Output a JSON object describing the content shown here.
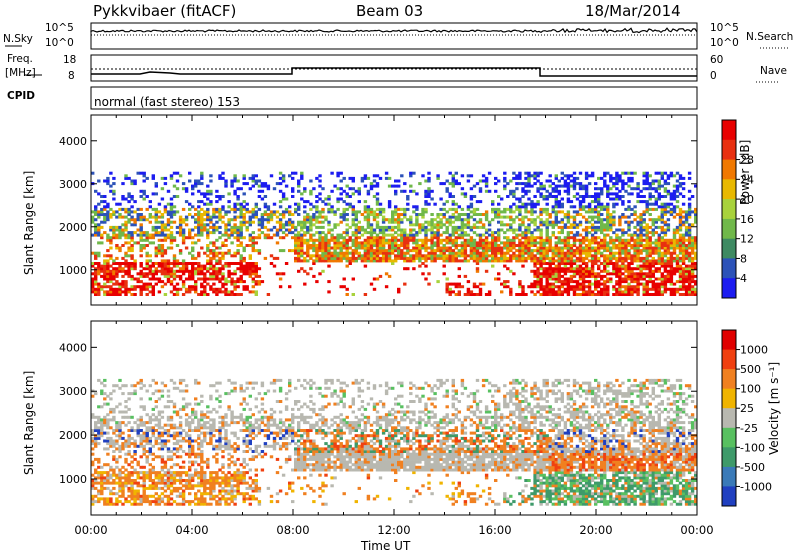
{
  "header": {
    "station": "Pykkvibaer (fitACF)",
    "beam": "Beam 03",
    "date": "18/Mar/2014"
  },
  "top_panels": {
    "nsky_label": "N.Sky",
    "nsky_ticks": [
      "10^5",
      "10^0"
    ],
    "nsearch_label": "N.Search",
    "nsearch_ticks": [
      "10^5",
      "10^0"
    ],
    "freq_label_1": "Freq.",
    "freq_label_2": "[MHz]",
    "freq_ticks": [
      "18",
      "8"
    ],
    "nave_label": "Nave",
    "nave_ticks": [
      "60",
      "0"
    ],
    "cpid_label": "CPID",
    "cpid_text": "normal (fast stereo) 153"
  },
  "chart_data": [
    {
      "type": "heatmap",
      "title": "",
      "xlabel": "Time UT",
      "ylabel": "Slant Range [km]",
      "xlim": [
        0,
        24
      ],
      "ylim": [
        180,
        4600
      ],
      "x_ticks": [
        "00:00",
        "04:00",
        "08:00",
        "12:00",
        "16:00",
        "20:00",
        "00:00"
      ],
      "y_ticks": [
        "1000",
        "2000",
        "3000",
        "4000"
      ],
      "y_tick_values": [
        1000,
        2000,
        3000,
        4000
      ],
      "colorbar": {
        "label": "Power [dB]",
        "ticks": [
          "4",
          "8",
          "12",
          "16",
          "20",
          "24",
          "28"
        ],
        "colors": [
          "#1c1cf0",
          "#2c52b8",
          "#3e8a62",
          "#70b84a",
          "#a8d23c",
          "#e8b800",
          "#f07800",
          "#e83010",
          "#e80000"
        ]
      },
      "features": [
        {
          "range_km": [
            700,
            1300
          ],
          "time_h": [
            0,
            6.5
          ],
          "dominant": "red"
        },
        {
          "range_km": [
            1200,
            1600
          ],
          "time_h": [
            8,
            18
          ],
          "dominant": "orange-red"
        },
        {
          "range_km": [
            1700,
            2400
          ],
          "time_h": [
            0,
            24
          ],
          "dominant": "green-orange"
        },
        {
          "range_km": [
            2400,
            3200
          ],
          "time_h": [
            0,
            24
          ],
          "dominant": "blue"
        },
        {
          "range_km": [
            700,
            1100
          ],
          "time_h": [
            18,
            24
          ],
          "dominant": "red"
        }
      ]
    },
    {
      "type": "heatmap",
      "title": "",
      "xlabel": "Time UT",
      "ylabel": "Slant Range [km]",
      "xlim": [
        0,
        24
      ],
      "ylim": [
        180,
        4600
      ],
      "x_ticks": [
        "00:00",
        "04:00",
        "08:00",
        "12:00",
        "16:00",
        "20:00",
        "00:00"
      ],
      "y_ticks": [
        "1000",
        "2000",
        "3000",
        "4000"
      ],
      "y_tick_values": [
        1000,
        2000,
        3000,
        4000
      ],
      "colorbar": {
        "label": "Velocity [m s⁻¹]",
        "ticks": [
          "1000",
          "500",
          "100",
          "25",
          "-25",
          "-100",
          "-500",
          "-1000"
        ],
        "colors": [
          "#2040c0",
          "#3a7ab8",
          "#3e9a6a",
          "#58c060",
          "#b8b8b0",
          "#f0b400",
          "#f08020",
          "#f04010",
          "#e00000"
        ]
      },
      "features": [
        {
          "range_km": [
            700,
            1400
          ],
          "time_h": [
            0,
            8
          ],
          "dominant": "orange"
        },
        {
          "range_km": [
            1200,
            1600
          ],
          "time_h": [
            8,
            18
          ],
          "dominant": "gray"
        },
        {
          "range_km": [
            1600,
            2200
          ],
          "time_h": [
            8,
            18
          ],
          "dominant": "orange"
        },
        {
          "range_km": [
            2100,
            2800
          ],
          "time_h": [
            0,
            24
          ],
          "dominant": "gray"
        },
        {
          "range_km": [
            600,
            1200
          ],
          "time_h": [
            18,
            24
          ],
          "dominant": "green"
        }
      ]
    }
  ]
}
